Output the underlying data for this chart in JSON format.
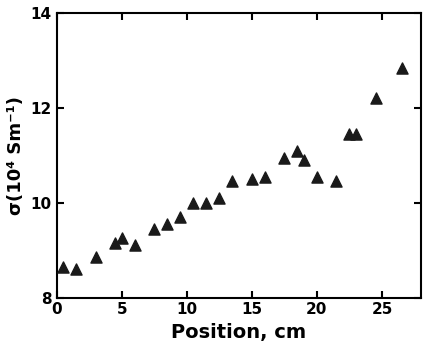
{
  "x": [
    0.5,
    1.5,
    3.0,
    4.5,
    5.0,
    6.0,
    7.5,
    8.5,
    9.5,
    10.5,
    11.5,
    12.5,
    13.5,
    15.0,
    16.0,
    17.5,
    18.5,
    19.0,
    20.0,
    21.5,
    22.5,
    23.0,
    24.5,
    26.5
  ],
  "y": [
    8.65,
    8.6,
    8.85,
    9.15,
    9.25,
    9.1,
    9.45,
    9.55,
    9.7,
    10.0,
    10.0,
    10.1,
    10.45,
    10.5,
    10.55,
    10.95,
    11.1,
    10.9,
    10.55,
    10.45,
    11.45,
    11.45,
    12.2,
    12.85
  ],
  "xlabel": "Position, cm",
  "ylabel": "σ(10⁴ Sm⁻¹)",
  "xlim": [
    0,
    28
  ],
  "ylim": [
    8,
    14
  ],
  "xticks": [
    0,
    5,
    10,
    15,
    20,
    25
  ],
  "yticks": [
    8,
    10,
    12,
    14
  ],
  "marker": "^",
  "marker_color": "#1a1a1a",
  "marker_size": 8,
  "spine_linewidth": 1.5,
  "background_color": "#ffffff",
  "xlabel_fontsize": 14,
  "ylabel_fontsize": 13,
  "tick_fontsize": 11,
  "xlabel_fontweight": "bold",
  "ylabel_fontweight": "bold"
}
